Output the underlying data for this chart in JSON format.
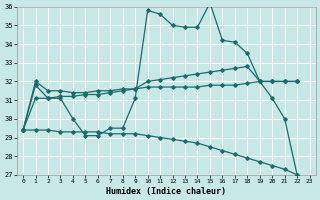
{
  "xlabel": "Humidex (Indice chaleur)",
  "xlim": [
    -0.5,
    23.5
  ],
  "ylim": [
    27,
    36
  ],
  "yticks": [
    27,
    28,
    29,
    30,
    31,
    32,
    33,
    34,
    35,
    36
  ],
  "xticks": [
    0,
    1,
    2,
    3,
    4,
    5,
    6,
    7,
    8,
    9,
    10,
    11,
    12,
    13,
    14,
    15,
    16,
    17,
    18,
    19,
    20,
    21,
    22,
    23
  ],
  "bg_color": "#c8e8e8",
  "grid_color": "#ffffff",
  "line_color": "#1a6b6b",
  "line1_x": [
    0,
    1,
    2,
    3,
    4,
    5,
    6,
    7,
    8,
    9,
    10,
    11,
    12,
    13,
    14,
    15,
    16,
    17,
    18,
    19,
    20,
    21,
    22
  ],
  "line1_y": [
    29.4,
    31.8,
    31.1,
    31.1,
    30.0,
    29.1,
    29.1,
    29.5,
    29.5,
    31.1,
    35.8,
    35.6,
    35.0,
    34.9,
    34.9,
    36.2,
    34.2,
    34.1,
    33.5,
    32.0,
    31.1,
    30.0,
    27.0
  ],
  "line2_x": [
    0,
    1,
    2,
    3,
    4,
    5,
    6,
    7,
    8,
    9,
    10,
    11,
    12,
    13,
    14,
    15,
    16,
    17,
    18,
    19,
    20,
    21,
    22
  ],
  "line2_y": [
    29.4,
    32.0,
    31.5,
    31.5,
    31.4,
    31.4,
    31.5,
    31.5,
    31.6,
    31.6,
    32.0,
    32.1,
    32.2,
    32.3,
    32.4,
    32.5,
    32.6,
    32.7,
    32.8,
    32.0,
    32.0,
    32.0,
    32.0
  ],
  "line3_x": [
    0,
    1,
    2,
    3,
    4,
    5,
    6,
    7,
    8,
    9,
    10,
    11,
    12,
    13,
    14,
    15,
    16,
    17,
    18,
    19,
    20,
    21,
    22
  ],
  "line3_y": [
    29.4,
    31.1,
    31.1,
    31.2,
    31.2,
    31.3,
    31.3,
    31.4,
    31.5,
    31.6,
    31.7,
    31.7,
    31.7,
    31.7,
    31.7,
    31.8,
    31.8,
    31.8,
    31.9,
    32.0,
    32.0,
    32.0,
    32.0
  ],
  "line4_x": [
    0,
    1,
    2,
    3,
    4,
    5,
    6,
    7,
    8,
    9,
    10,
    11,
    12,
    13,
    14,
    15,
    16,
    17,
    18,
    19,
    20,
    21,
    22
  ],
  "line4_y": [
    29.4,
    29.4,
    29.4,
    29.3,
    29.3,
    29.3,
    29.3,
    29.2,
    29.2,
    29.2,
    29.1,
    29.0,
    28.9,
    28.8,
    28.7,
    28.5,
    28.3,
    28.1,
    27.9,
    27.7,
    27.5,
    27.3,
    27.0
  ]
}
